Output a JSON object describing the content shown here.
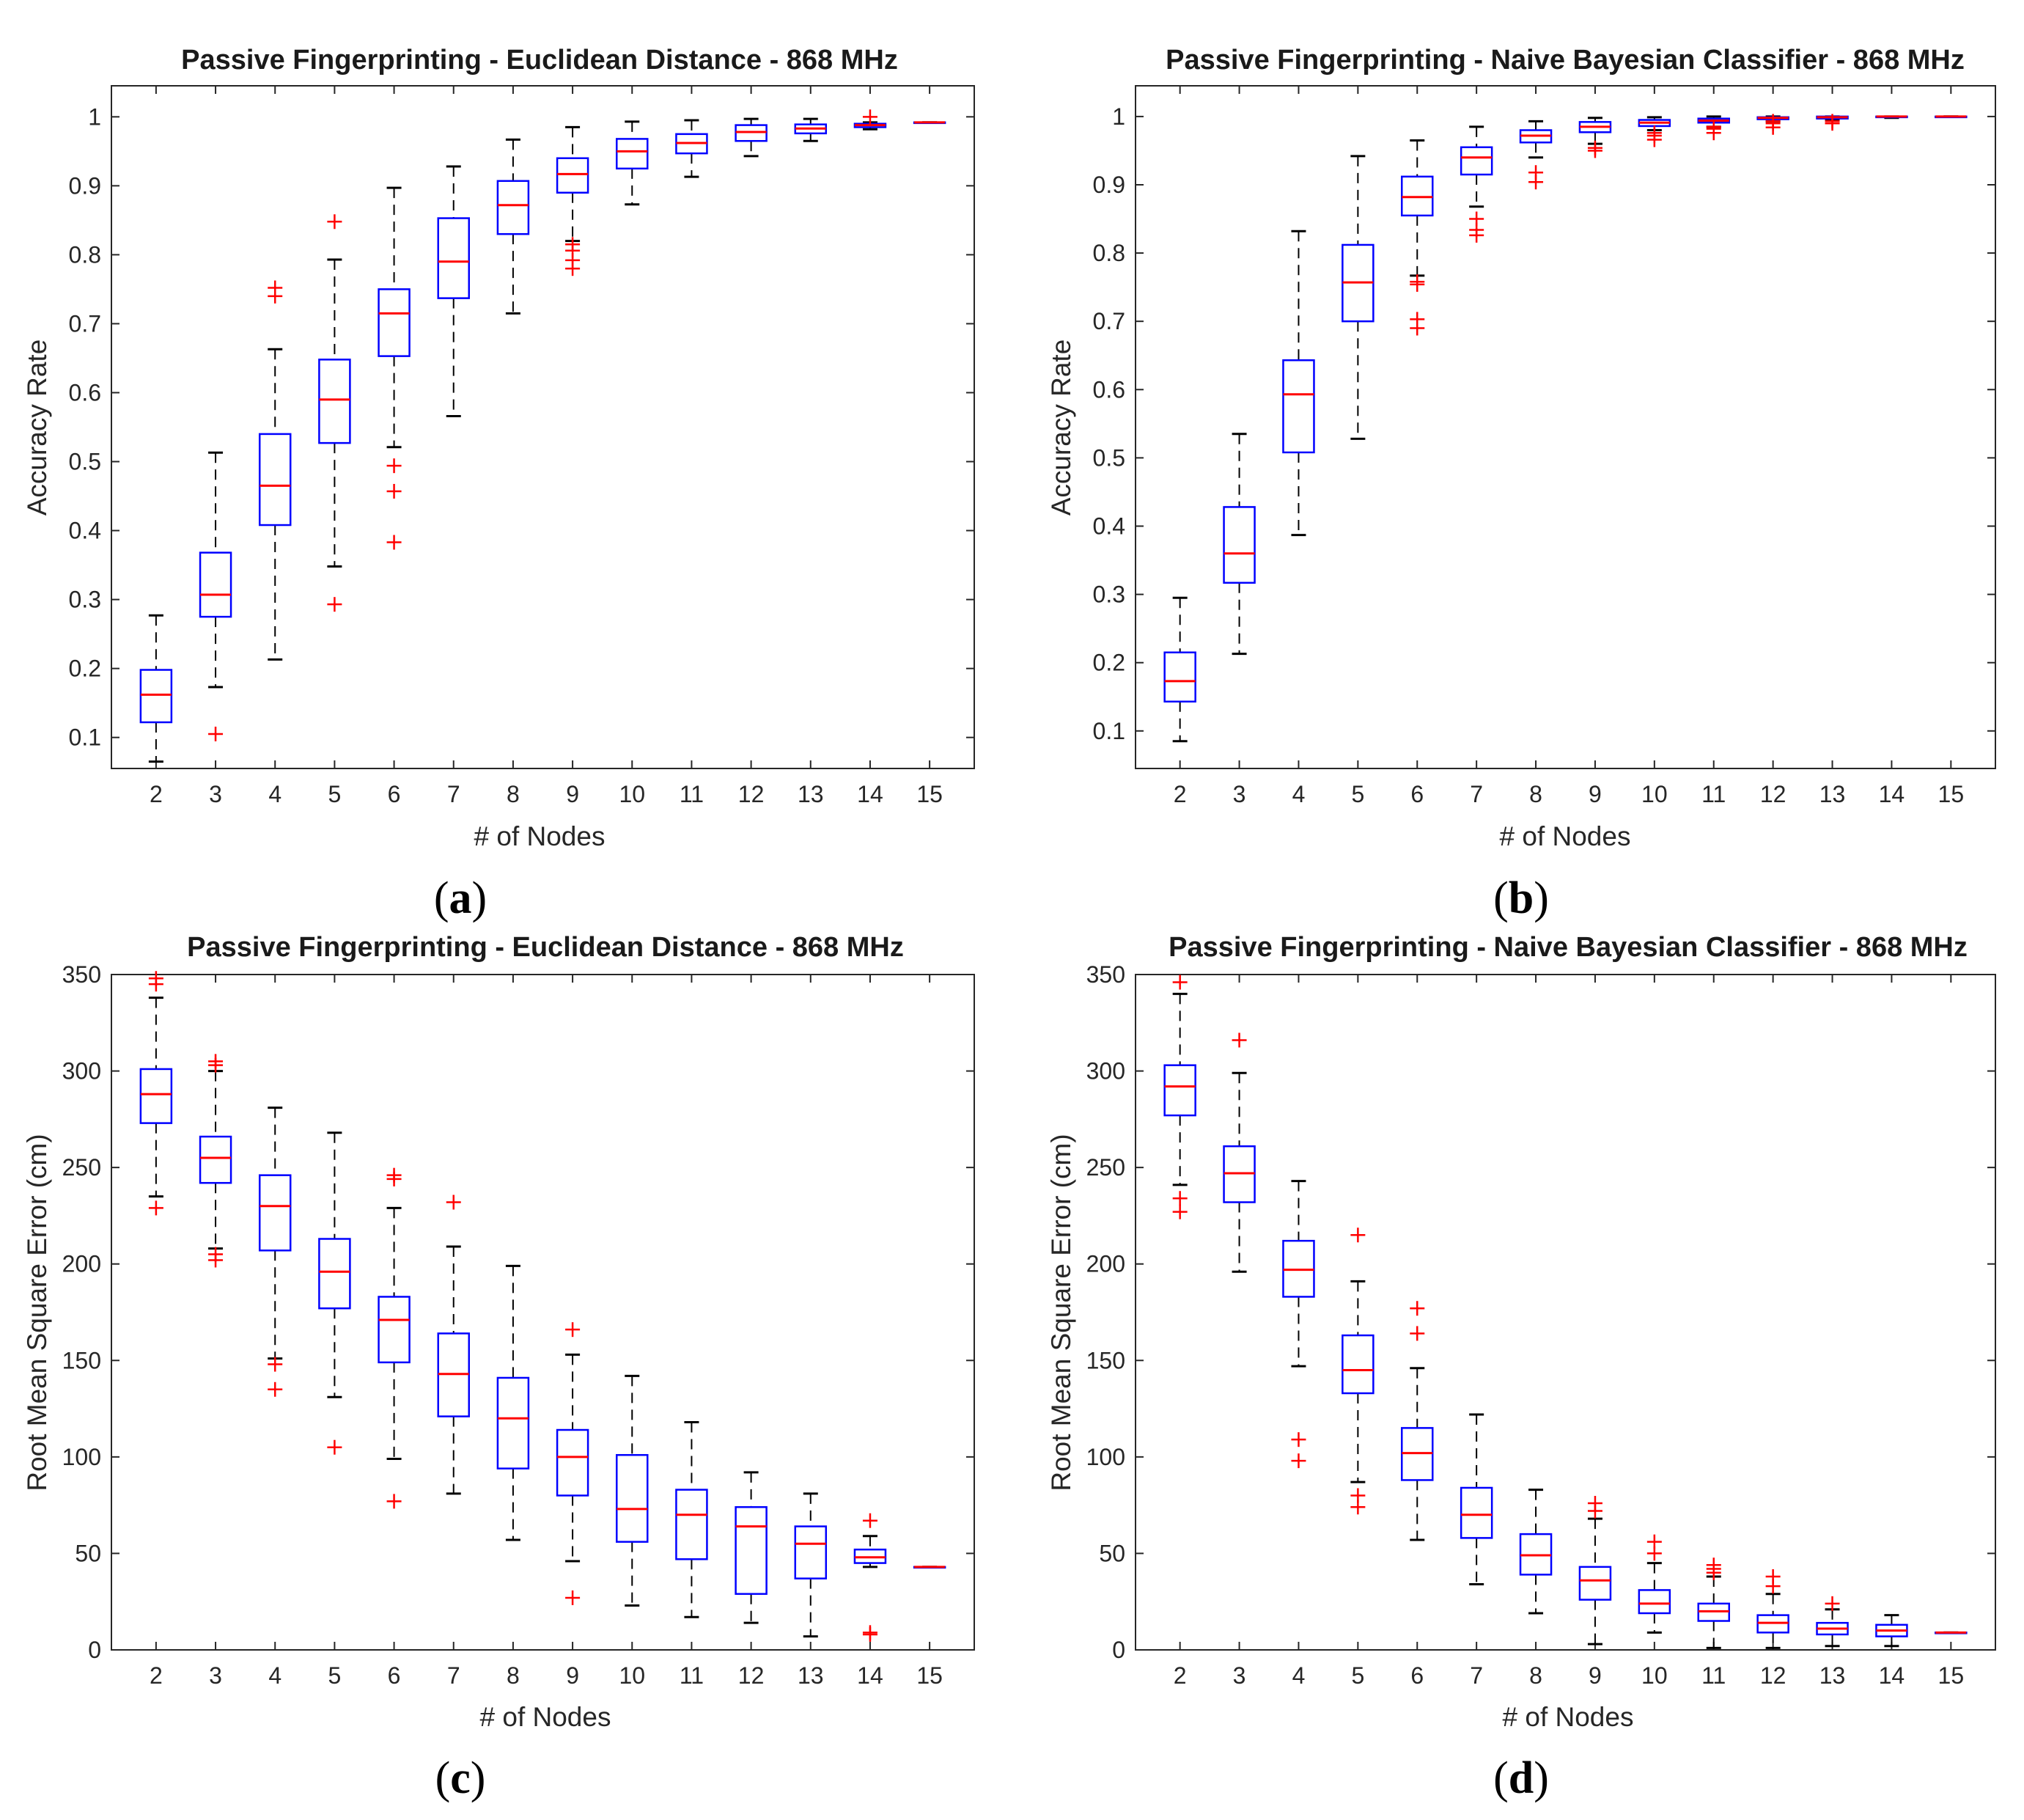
{
  "colors": {
    "box": "#0000ff",
    "median": "#ff0000",
    "outlier": "#ff0000",
    "whisker": "#000000",
    "axes": "#262626"
  },
  "chart_data": [
    {
      "id": "a",
      "type": "box",
      "caption": "a",
      "title": "Passive Fingerprinting - Euclidean Distance - 868 MHz",
      "xlabel": "# of Nodes",
      "ylabel": "Accuracy Rate",
      "categories": [
        "2",
        "3",
        "4",
        "5",
        "6",
        "7",
        "8",
        "9",
        "10",
        "11",
        "12",
        "13",
        "14",
        "15"
      ],
      "ylim": [
        0.055,
        1.045
      ],
      "yticks": [
        0.1,
        0.2,
        0.3,
        0.4,
        0.5,
        0.6,
        0.7,
        0.8,
        0.9,
        1
      ],
      "ytick_labels": [
        "0.1",
        "0.2",
        "0.3",
        "0.4",
        "0.5",
        "0.6",
        "0.7",
        "0.8",
        "0.9",
        "1"
      ],
      "boxes": [
        {
          "lw": 0.065,
          "q1": 0.122,
          "med": 0.162,
          "q3": 0.198,
          "uw": 0.277,
          "out": []
        },
        {
          "lw": 0.173,
          "q1": 0.275,
          "med": 0.307,
          "q3": 0.368,
          "uw": 0.513,
          "out": [
            0.105
          ]
        },
        {
          "lw": 0.213,
          "q1": 0.408,
          "med": 0.465,
          "q3": 0.54,
          "uw": 0.663,
          "out": [
            0.74,
            0.752
          ]
        },
        {
          "lw": 0.348,
          "q1": 0.527,
          "med": 0.59,
          "q3": 0.648,
          "uw": 0.793,
          "out": [
            0.293,
            0.848
          ]
        },
        {
          "lw": 0.521,
          "q1": 0.653,
          "med": 0.715,
          "q3": 0.75,
          "uw": 0.897,
          "out": [
            0.383,
            0.457,
            0.494
          ]
        },
        {
          "lw": 0.566,
          "q1": 0.737,
          "med": 0.79,
          "q3": 0.853,
          "uw": 0.928,
          "out": []
        },
        {
          "lw": 0.715,
          "q1": 0.83,
          "med": 0.872,
          "q3": 0.907,
          "uw": 0.967,
          "out": []
        },
        {
          "lw": 0.82,
          "q1": 0.89,
          "med": 0.917,
          "q3": 0.94,
          "uw": 0.985,
          "out": [
            0.78,
            0.792,
            0.806,
            0.815
          ]
        },
        {
          "lw": 0.873,
          "q1": 0.925,
          "med": 0.95,
          "q3": 0.968,
          "uw": 0.993,
          "out": []
        },
        {
          "lw": 0.913,
          "q1": 0.947,
          "med": 0.962,
          "q3": 0.975,
          "uw": 0.995,
          "out": []
        },
        {
          "lw": 0.943,
          "q1": 0.965,
          "med": 0.978,
          "q3": 0.988,
          "uw": 0.997,
          "out": []
        },
        {
          "lw": 0.965,
          "q1": 0.976,
          "med": 0.983,
          "q3": 0.989,
          "uw": 0.997,
          "out": []
        },
        {
          "lw": 0.982,
          "q1": 0.985,
          "med": 0.988,
          "q3": 0.99,
          "uw": 0.992,
          "out": [
            1.0
          ]
        },
        {
          "lw": 0.992,
          "q1": 0.992,
          "med": 0.992,
          "q3": 0.992,
          "uw": 0.992,
          "out": []
        }
      ]
    },
    {
      "id": "b",
      "type": "box",
      "caption": "b",
      "title": "Passive Fingerprinting - Naive Bayesian Classifier - 868 MHz",
      "xlabel": "# of Nodes",
      "ylabel": "Accuracy Rate",
      "categories": [
        "2",
        "3",
        "4",
        "5",
        "6",
        "7",
        "8",
        "9",
        "10",
        "11",
        "12",
        "13",
        "14",
        "15"
      ],
      "ylim": [
        0.045,
        1.045
      ],
      "yticks": [
        0.1,
        0.2,
        0.3,
        0.4,
        0.5,
        0.6,
        0.7,
        0.8,
        0.9,
        1
      ],
      "ytick_labels": [
        "0.1",
        "0.2",
        "0.3",
        "0.4",
        "0.5",
        "0.6",
        "0.7",
        "0.8",
        "0.9",
        "1"
      ],
      "boxes": [
        {
          "lw": 0.085,
          "q1": 0.143,
          "med": 0.173,
          "q3": 0.215,
          "uw": 0.295,
          "out": []
        },
        {
          "lw": 0.213,
          "q1": 0.317,
          "med": 0.36,
          "q3": 0.428,
          "uw": 0.535,
          "out": []
        },
        {
          "lw": 0.387,
          "q1": 0.508,
          "med": 0.593,
          "q3": 0.643,
          "uw": 0.832,
          "out": []
        },
        {
          "lw": 0.528,
          "q1": 0.7,
          "med": 0.757,
          "q3": 0.812,
          "uw": 0.942,
          "out": []
        },
        {
          "lw": 0.767,
          "q1": 0.855,
          "med": 0.882,
          "q3": 0.912,
          "uw": 0.965,
          "out": [
            0.69,
            0.703,
            0.754,
            0.758
          ]
        },
        {
          "lw": 0.868,
          "q1": 0.915,
          "med": 0.94,
          "q3": 0.955,
          "uw": 0.985,
          "out": [
            0.826,
            0.834,
            0.85
          ]
        },
        {
          "lw": 0.94,
          "q1": 0.962,
          "med": 0.972,
          "q3": 0.98,
          "uw": 0.993,
          "out": [
            0.904,
            0.918
          ]
        },
        {
          "lw": 0.96,
          "q1": 0.977,
          "med": 0.985,
          "q3": 0.992,
          "uw": 0.998,
          "out": [
            0.95,
            0.954
          ]
        },
        {
          "lw": 0.98,
          "q1": 0.986,
          "med": 0.991,
          "q3": 0.995,
          "uw": 0.999,
          "out": [
            0.966,
            0.972,
            0.976
          ]
        },
        {
          "lw": 0.985,
          "q1": 0.991,
          "med": 0.994,
          "q3": 0.997,
          "uw": 1.0,
          "out": [
            0.976,
            0.982,
            0.985
          ]
        },
        {
          "lw": 0.993,
          "q1": 0.996,
          "med": 0.998,
          "q3": 0.999,
          "uw": 1.0,
          "out": [
            0.984,
            0.99,
            0.993
          ]
        },
        {
          "lw": 0.995,
          "q1": 0.997,
          "med": 0.999,
          "q3": 1.0,
          "uw": 1.0,
          "out": [
            0.99,
            0.993
          ]
        },
        {
          "lw": 0.998,
          "q1": 0.999,
          "med": 1.0,
          "q3": 1.0,
          "uw": 1.0,
          "out": []
        },
        {
          "lw": 1.0,
          "q1": 1.0,
          "med": 1.0,
          "q3": 1.0,
          "uw": 1.0,
          "out": []
        }
      ]
    },
    {
      "id": "c",
      "type": "box",
      "caption": "c",
      "title": "Passive Fingerprinting - Euclidean Distance - 868 MHz",
      "xlabel": "# of Nodes",
      "ylabel": "Root Mean Square Error (cm)",
      "categories": [
        "2",
        "3",
        "4",
        "5",
        "6",
        "7",
        "8",
        "9",
        "10",
        "11",
        "12",
        "13",
        "14",
        "15"
      ],
      "ylim": [
        0,
        350
      ],
      "yticks": [
        0,
        50,
        100,
        150,
        200,
        250,
        300,
        350
      ],
      "ytick_labels": [
        "0",
        "50",
        "100",
        "150",
        "200",
        "250",
        "300",
        "350"
      ],
      "boxes": [
        {
          "lw": 235,
          "q1": 273,
          "med": 288,
          "q3": 301,
          "uw": 338,
          "out": [
            229,
            345,
            348
          ]
        },
        {
          "lw": 208,
          "q1": 242,
          "med": 255,
          "q3": 266,
          "uw": 300,
          "out": [
            202,
            205,
            303,
            305
          ]
        },
        {
          "lw": 151,
          "q1": 207,
          "med": 230,
          "q3": 246,
          "uw": 281,
          "out": [
            135,
            148
          ]
        },
        {
          "lw": 131,
          "q1": 177,
          "med": 196,
          "q3": 213,
          "uw": 268,
          "out": [
            105
          ]
        },
        {
          "lw": 99,
          "q1": 149,
          "med": 171,
          "q3": 183,
          "uw": 229,
          "out": [
            77,
            244,
            246
          ]
        },
        {
          "lw": 81,
          "q1": 121,
          "med": 143,
          "q3": 164,
          "uw": 209,
          "out": [
            232
          ]
        },
        {
          "lw": 57,
          "q1": 94,
          "med": 120,
          "q3": 141,
          "uw": 199,
          "out": []
        },
        {
          "lw": 46,
          "q1": 80,
          "med": 100,
          "q3": 114,
          "uw": 153,
          "out": [
            27,
            166
          ]
        },
        {
          "lw": 23,
          "q1": 56,
          "med": 73,
          "q3": 101,
          "uw": 142,
          "out": []
        },
        {
          "lw": 17,
          "q1": 47,
          "med": 70,
          "q3": 83,
          "uw": 118,
          "out": []
        },
        {
          "lw": 14,
          "q1": 29,
          "med": 64,
          "q3": 74,
          "uw": 92,
          "out": []
        },
        {
          "lw": 7,
          "q1": 37,
          "med": 55,
          "q3": 64,
          "uw": 81,
          "out": []
        },
        {
          "lw": 43,
          "q1": 45,
          "med": 48,
          "q3": 52,
          "uw": 59,
          "out": [
            8,
            9,
            67
          ]
        },
        {
          "lw": 43,
          "q1": 43,
          "med": 43,
          "q3": 43,
          "uw": 43,
          "out": []
        }
      ]
    },
    {
      "id": "d",
      "type": "box",
      "caption": "d",
      "title": "Passive Fingerprinting - Naive Bayesian Classifier - 868 MHz",
      "xlabel": "# of Nodes",
      "ylabel": "Root Mean Square Error (cm)",
      "categories": [
        "2",
        "3",
        "4",
        "5",
        "6",
        "7",
        "8",
        "9",
        "10",
        "11",
        "12",
        "13",
        "14",
        "15"
      ],
      "ylim": [
        0,
        350
      ],
      "yticks": [
        0,
        50,
        100,
        150,
        200,
        250,
        300,
        350
      ],
      "ytick_labels": [
        "0",
        "50",
        "100",
        "150",
        "200",
        "250",
        "300",
        "350"
      ],
      "boxes": [
        {
          "lw": 241,
          "q1": 277,
          "med": 292,
          "q3": 303,
          "uw": 340,
          "out": [
            227,
            234,
            346
          ]
        },
        {
          "lw": 196,
          "q1": 232,
          "med": 247,
          "q3": 261,
          "uw": 299,
          "out": [
            316
          ]
        },
        {
          "lw": 147,
          "q1": 183,
          "med": 197,
          "q3": 212,
          "uw": 243,
          "out": [
            98,
            109
          ]
        },
        {
          "lw": 87,
          "q1": 133,
          "med": 145,
          "q3": 163,
          "uw": 191,
          "out": [
            74,
            80,
            215
          ]
        },
        {
          "lw": 57,
          "q1": 88,
          "med": 102,
          "q3": 115,
          "uw": 146,
          "out": [
            164,
            177
          ]
        },
        {
          "lw": 34,
          "q1": 58,
          "med": 70,
          "q3": 84,
          "uw": 122,
          "out": []
        },
        {
          "lw": 19,
          "q1": 39,
          "med": 49,
          "q3": 60,
          "uw": 83,
          "out": []
        },
        {
          "lw": 3,
          "q1": 26,
          "med": 36,
          "q3": 43,
          "uw": 68,
          "out": [
            72,
            76
          ]
        },
        {
          "lw": 9,
          "q1": 19,
          "med": 24,
          "q3": 31,
          "uw": 45,
          "out": [
            50,
            56
          ]
        },
        {
          "lw": 1,
          "q1": 15,
          "med": 20,
          "q3": 24,
          "uw": 38,
          "out": [
            40,
            42,
            44
          ]
        },
        {
          "lw": 1,
          "q1": 9,
          "med": 14,
          "q3": 18,
          "uw": 29,
          "out": [
            33,
            38
          ]
        },
        {
          "lw": 2,
          "q1": 8,
          "med": 11,
          "q3": 14,
          "uw": 21,
          "out": [
            24
          ]
        },
        {
          "lw": 2,
          "q1": 7,
          "med": 10,
          "q3": 13,
          "uw": 18,
          "out": []
        },
        {
          "lw": 9,
          "q1": 9,
          "med": 9,
          "q3": 9,
          "uw": 9,
          "out": []
        }
      ]
    }
  ]
}
